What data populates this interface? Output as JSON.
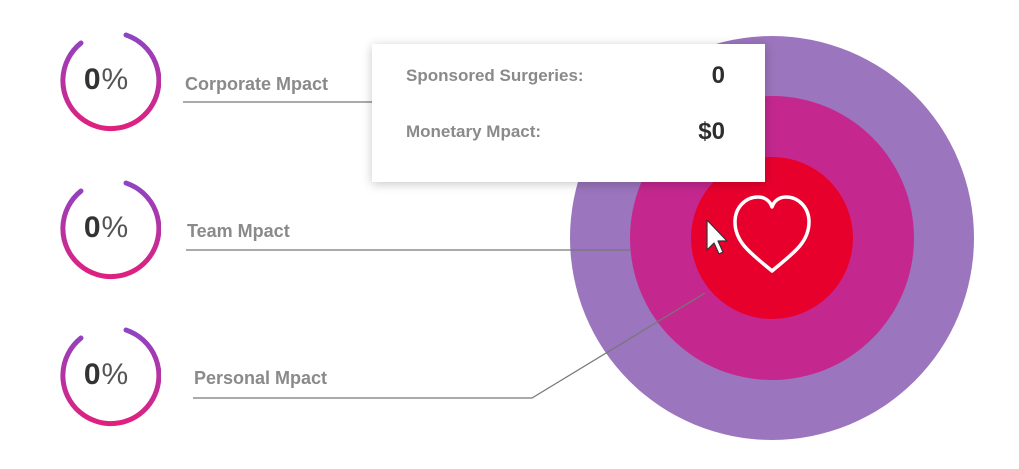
{
  "metrics": [
    {
      "id": "corporate",
      "percent_value": "0",
      "percent_symbol": "%",
      "label": "Corporate Mpact",
      "progress": 0
    },
    {
      "id": "team",
      "percent_value": "0",
      "percent_symbol": "%",
      "label": "Team Mpact",
      "progress": 0
    },
    {
      "id": "personal",
      "percent_value": "0",
      "percent_symbol": "%",
      "label": "Personal Mpact",
      "progress": 0
    }
  ],
  "tooltip": {
    "rows": [
      {
        "label": "Sponsored Surgeries:",
        "value": "0"
      },
      {
        "label": "Monetary Mpact:",
        "value": "$0"
      }
    ]
  },
  "target": {
    "outer_ring_label": "corporate",
    "middle_ring_label": "team",
    "inner_ring_label": "personal",
    "center_icon": "heart-icon",
    "cursor_icon": "cursor-arrow-icon"
  },
  "colors": {
    "outer_ring": "#9b75bd",
    "middle_ring": "#c4288f",
    "inner_ring": "#e8002d",
    "gauge_gradient_start": "#8e44c4",
    "gauge_gradient_end": "#e0207e",
    "label": "#8a8a8a",
    "connector": "#777777"
  }
}
